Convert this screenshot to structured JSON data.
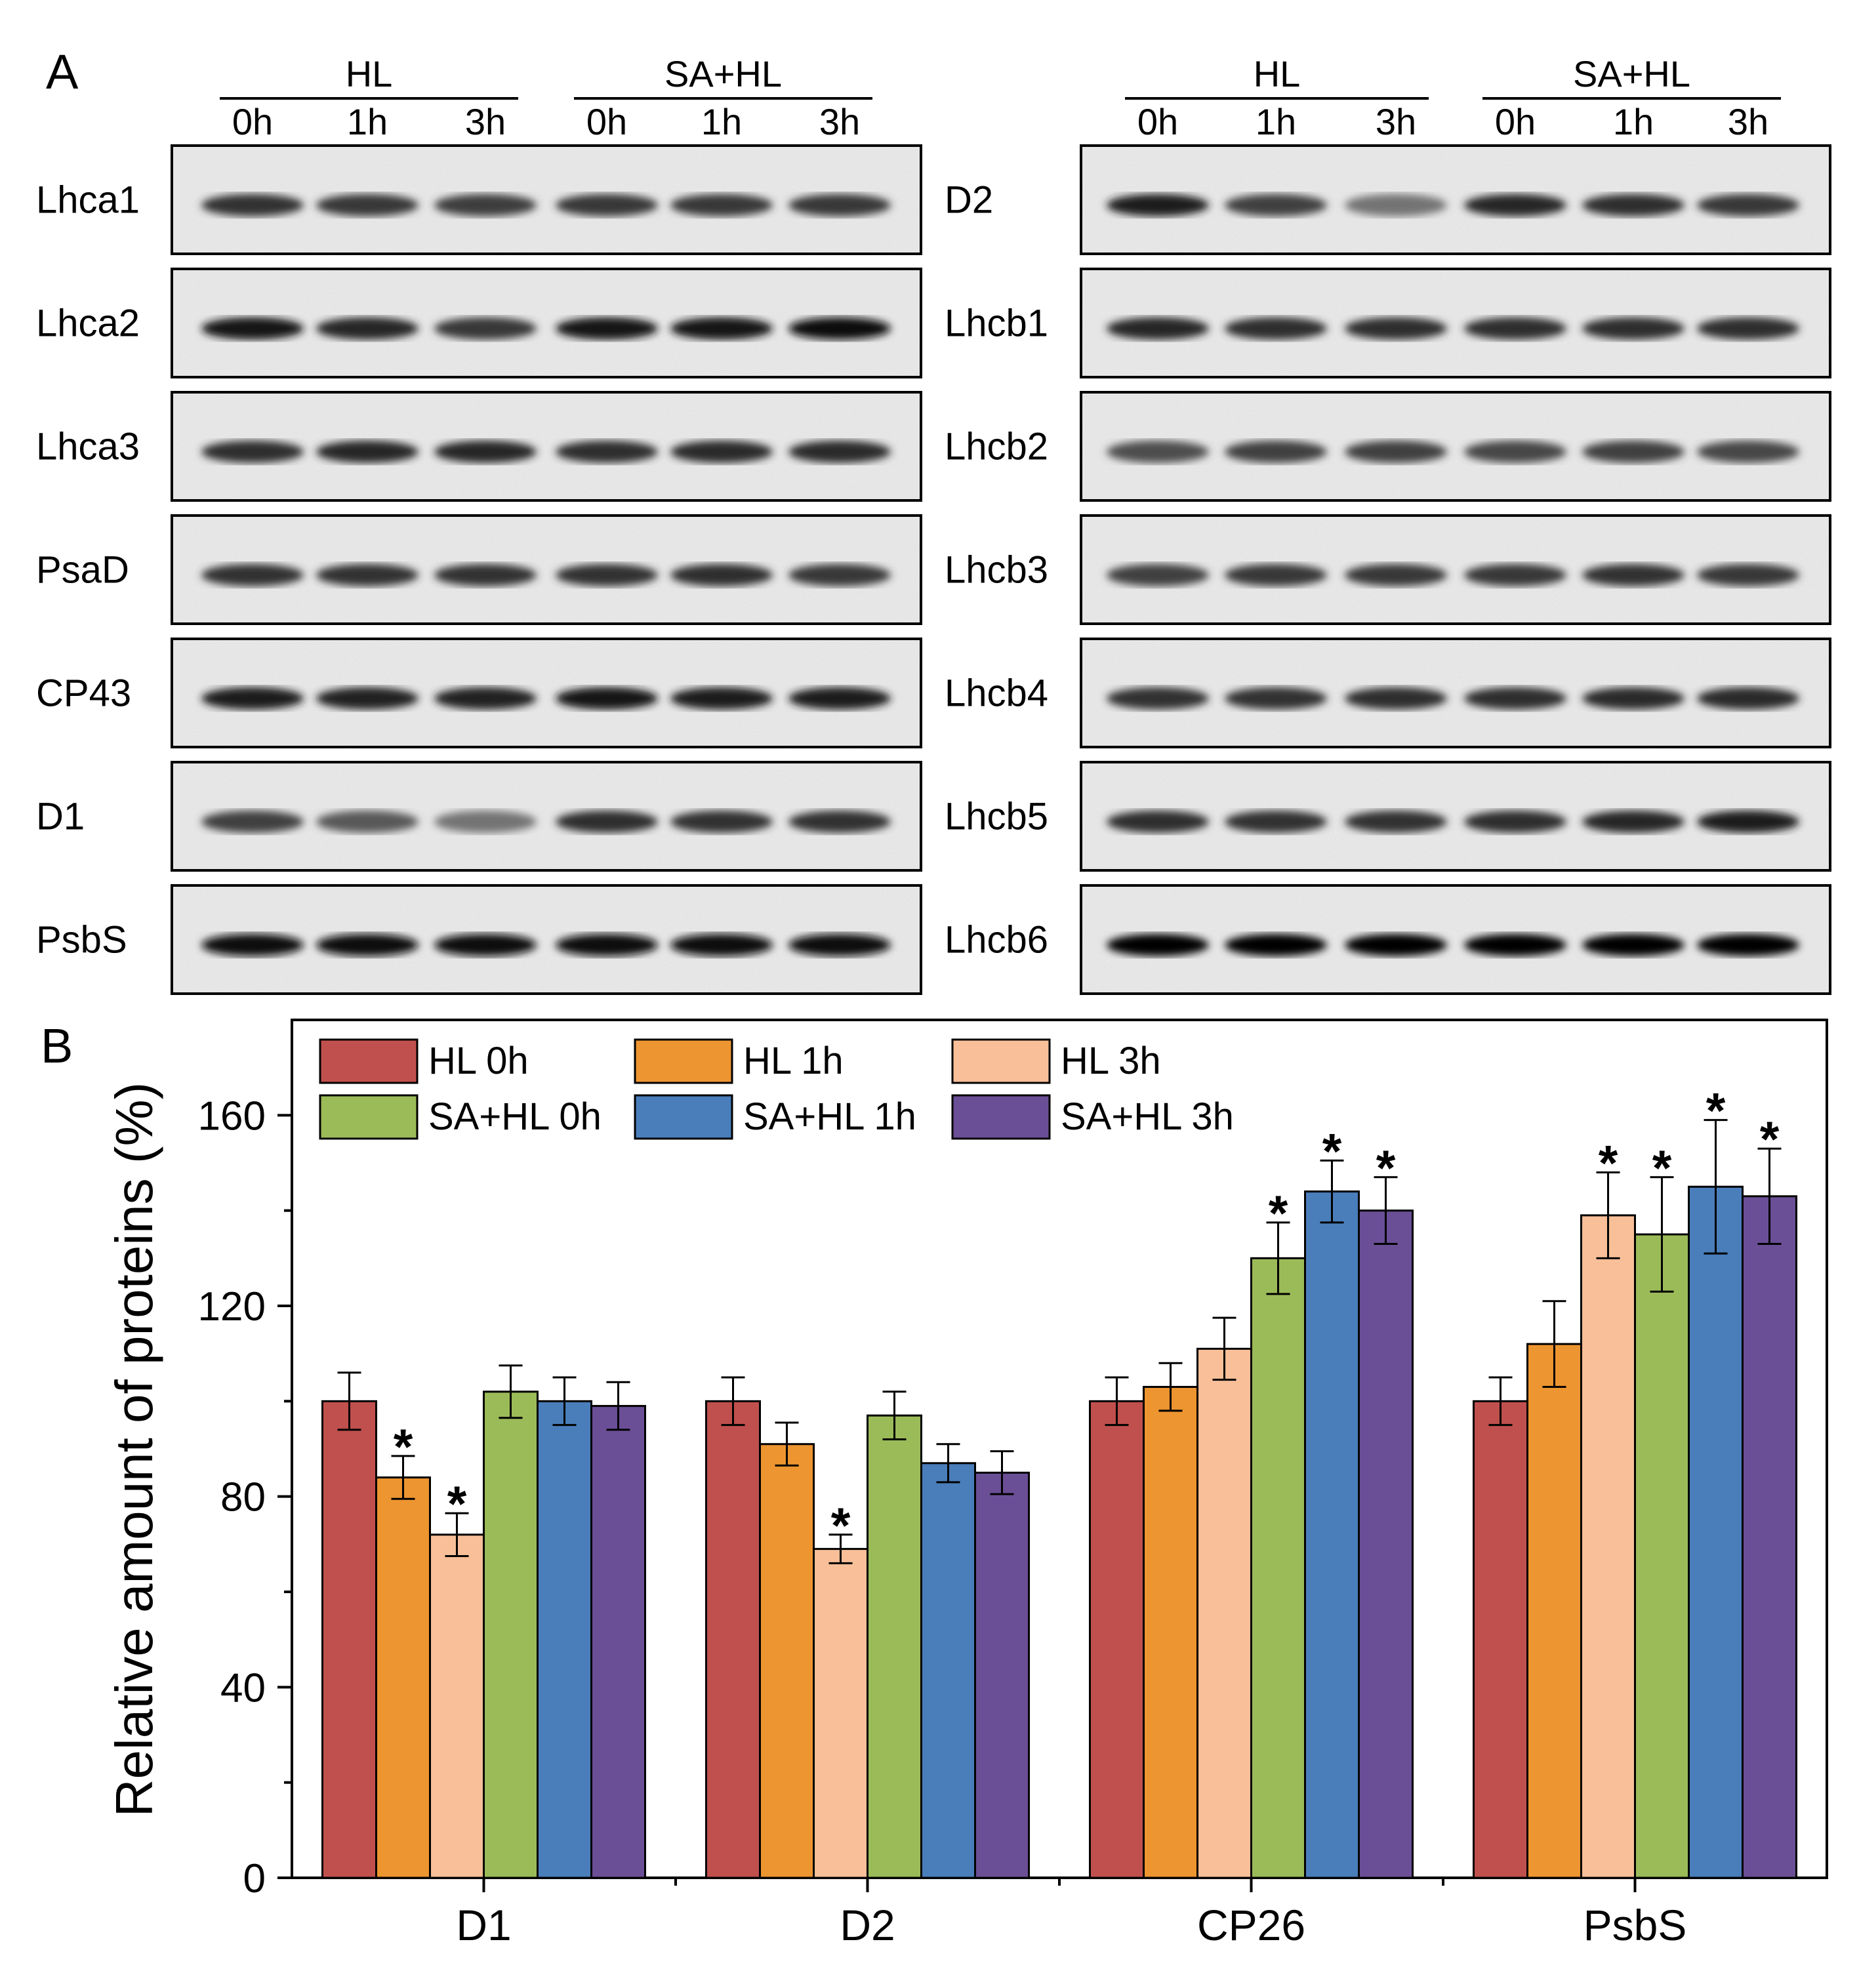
{
  "panel_a": {
    "letter": "A",
    "group_labels": [
      "HL",
      "SA+HL"
    ],
    "lane_labels": [
      "0h",
      "1h",
      "3h",
      "0h",
      "1h",
      "3h"
    ],
    "left_blots": [
      {
        "label": "Lhca1",
        "intensity": [
          0.8,
          0.78,
          0.76,
          0.78,
          0.78,
          0.78
        ]
      },
      {
        "label": "Lhca2",
        "intensity": [
          0.9,
          0.85,
          0.78,
          0.9,
          0.92,
          0.95
        ]
      },
      {
        "label": "Lhca3",
        "intensity": [
          0.82,
          0.85,
          0.85,
          0.82,
          0.84,
          0.84
        ]
      },
      {
        "label": "PsaD",
        "intensity": [
          0.8,
          0.8,
          0.8,
          0.8,
          0.82,
          0.78
        ]
      },
      {
        "label": "CP43",
        "intensity": [
          0.88,
          0.86,
          0.86,
          0.9,
          0.88,
          0.88
        ]
      },
      {
        "label": "D1",
        "intensity": [
          0.75,
          0.65,
          0.55,
          0.82,
          0.8,
          0.8
        ]
      },
      {
        "label": "PsbS",
        "intensity": [
          0.95,
          0.97,
          0.97,
          0.97,
          0.97,
          0.97
        ]
      }
    ],
    "right_blots": [
      {
        "label": "D2",
        "intensity": [
          0.88,
          0.75,
          0.55,
          0.85,
          0.82,
          0.78
        ]
      },
      {
        "label": "Lhcb1",
        "intensity": [
          0.85,
          0.82,
          0.82,
          0.82,
          0.82,
          0.82
        ]
      },
      {
        "label": "Lhcb2",
        "intensity": [
          0.7,
          0.75,
          0.75,
          0.72,
          0.75,
          0.72
        ]
      },
      {
        "label": "Lhcb3",
        "intensity": [
          0.75,
          0.78,
          0.78,
          0.78,
          0.8,
          0.78
        ]
      },
      {
        "label": "Lhcb4",
        "intensity": [
          0.8,
          0.8,
          0.82,
          0.82,
          0.84,
          0.84
        ]
      },
      {
        "label": "Lhcb5",
        "intensity": [
          0.82,
          0.8,
          0.8,
          0.82,
          0.85,
          0.88
        ]
      },
      {
        "label": "Lhcb6",
        "intensity": [
          0.98,
          0.98,
          0.98,
          0.98,
          0.98,
          0.98
        ]
      }
    ]
  },
  "chart_data": {
    "type": "bar",
    "panel_letter": "B",
    "categories": [
      "D1",
      "D2",
      "CP26",
      "PsbS"
    ],
    "ylabel": "Relative amount of proteins (%)",
    "xlabel": "",
    "ylim": [
      0,
      180
    ],
    "yticks": [
      0,
      40,
      80,
      120,
      160
    ],
    "significance_marker": "*",
    "legend_position": "top-left",
    "series": [
      {
        "name": "HL 0h",
        "color": "#c0504d",
        "values": [
          100,
          100,
          100,
          100
        ],
        "errors": [
          6,
          5,
          5,
          5
        ],
        "significant": [
          false,
          false,
          false,
          false
        ]
      },
      {
        "name": "HL 1h",
        "color": "#ed9530",
        "values": [
          84,
          91,
          103,
          112
        ],
        "errors": [
          4.5,
          4.5,
          5,
          9
        ],
        "significant": [
          true,
          false,
          false,
          false
        ]
      },
      {
        "name": "HL 3h",
        "color": "#f8bf98",
        "values": [
          72,
          69,
          111,
          139
        ],
        "errors": [
          4.5,
          3,
          6.5,
          9
        ],
        "significant": [
          true,
          true,
          false,
          true
        ]
      },
      {
        "name": "SA+HL 0h",
        "color": "#9bbb59",
        "values": [
          102,
          97,
          130,
          135
        ],
        "errors": [
          5.5,
          5,
          7.5,
          12
        ],
        "significant": [
          false,
          false,
          true,
          true
        ]
      },
      {
        "name": "SA+HL 1h",
        "color": "#4a7ebb",
        "values": [
          100,
          87,
          144,
          145
        ],
        "errors": [
          5,
          4,
          6.5,
          14
        ],
        "significant": [
          false,
          false,
          true,
          true
        ]
      },
      {
        "name": "SA+HL 3h",
        "color": "#6b4f96",
        "values": [
          99,
          85,
          140,
          143
        ],
        "errors": [
          5,
          4.5,
          7,
          10
        ],
        "significant": [
          false,
          false,
          true,
          true
        ]
      }
    ]
  }
}
